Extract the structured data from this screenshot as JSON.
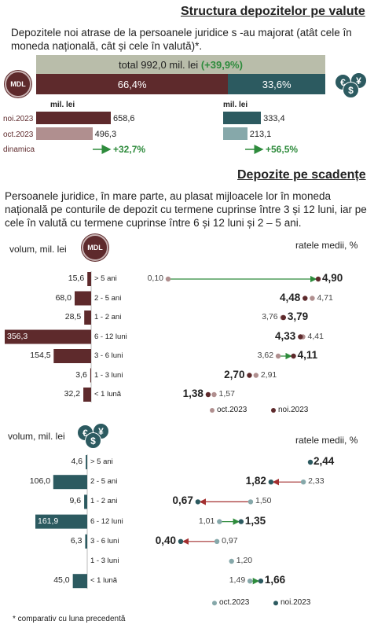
{
  "section1": {
    "title": "Structura depozitelor pe valute",
    "intro": "Depozitele noi atrase de la persoanele juridice s -au majorat (atât cele în moneda națională, cât și cele în valută)*.",
    "total_label": "total 992,0 mil. lei",
    "total_change": "(+39,9%)",
    "mdl_share": "66,4%",
    "fx_share": "33,6%",
    "shares": [
      66.4,
      33.6
    ],
    "unit_label": "mil. lei",
    "mdl_logo": "MDL",
    "rows": [
      {
        "label": "noi.2023",
        "mdl": 658.6,
        "mdl_text": "658,6",
        "fx": 333.4,
        "fx_text": "333,4"
      },
      {
        "label": "oct.2023",
        "mdl": 496.3,
        "mdl_text": "496,3",
        "fx": 213.1,
        "fx_text": "213,1"
      }
    ],
    "dyn_label": "dinamica",
    "dyn_mdl": "+32,7%",
    "dyn_fx": "+56,5%"
  },
  "section2": {
    "title": "Depozite pe scadențe",
    "intro": "Persoanele juridice, în mare parte, au plasat mijloacele lor în moneda națională pe conturile de depozit cu termene cuprinse între 3 și 12 luni, iar pe cele în valută cu termene cuprinse între 6 și 12 luni și 2 – 5 ani."
  },
  "chart_data": [
    {
      "type": "bar",
      "name": "MDL",
      "volume_label": "volum, mil. lei",
      "rates_label": "ratele medii, %",
      "categories": [
        "> 5 ani",
        "2 - 5 ani",
        "1 - 2 ani",
        "6 - 12 luni",
        "3 - 6 luni",
        "1 - 3 luni",
        "< 1 lună"
      ],
      "volumes": [
        15.6,
        68.0,
        28.5,
        356.3,
        154.5,
        3.6,
        32.2
      ],
      "volume_texts": [
        "15,6",
        "68,0",
        "28,5",
        "356,3",
        "154,5",
        "3,6",
        "32,2"
      ],
      "rate_oct": [
        0.1,
        4.71,
        3.76,
        4.41,
        3.62,
        2.91,
        1.57
      ],
      "rate_oct_texts": [
        "0,10",
        "4,71",
        "3,76",
        "4,41",
        "3,62",
        "2,91",
        "1,57"
      ],
      "rate_noi": [
        4.9,
        4.48,
        3.79,
        4.33,
        4.11,
        2.7,
        1.38
      ],
      "rate_noi_texts": [
        "4,90",
        "4,48",
        "3,79",
        "4,33",
        "4,11",
        "2,70",
        "1,38"
      ],
      "legend": [
        "oct.2023",
        "noi.2023"
      ],
      "colors": {
        "bar": "#5e2a2c",
        "oct": "#b08f8f",
        "noi": "#5e2a2c",
        "up": "#2e8b3c",
        "down": "#a33030"
      }
    },
    {
      "type": "bar",
      "name": "Valută",
      "volume_label": "volum, mil. lei",
      "rates_label": "ratele medii, %",
      "categories": [
        "> 5 ani",
        "2 - 5 ani",
        "1 - 2 ani",
        "6 - 12 luni",
        "3 - 6 luni",
        "1 - 3 luni",
        "< 1 lună"
      ],
      "volumes": [
        4.6,
        106.0,
        9.6,
        161.9,
        6.3,
        null,
        45.0
      ],
      "volume_texts": [
        "4,6",
        "106,0",
        "9,6",
        "161,9",
        "6,3",
        "",
        "45,0"
      ],
      "rate_oct": [
        null,
        2.33,
        1.5,
        1.01,
        0.97,
        1.2,
        1.49
      ],
      "rate_oct_texts": [
        "",
        "2,33",
        "1,50",
        "1,01",
        "0,97",
        "1,20",
        "1,49"
      ],
      "rate_noi": [
        2.44,
        1.82,
        0.67,
        1.35,
        0.4,
        null,
        1.66
      ],
      "rate_noi_texts": [
        "2,44",
        "1,82",
        "0,67",
        "1,35",
        "0,40",
        "",
        "1,66"
      ],
      "legend": [
        "oct.2023",
        "noi.2023"
      ],
      "colors": {
        "bar": "#2c5a60",
        "oct": "#86a8aa",
        "noi": "#2c5a60",
        "up": "#2e8b3c",
        "down": "#a33030"
      }
    }
  ],
  "footnote": "* comparativ cu luna precedentă",
  "fx_icon_glyphs": [
    "€",
    "$",
    "¥"
  ]
}
